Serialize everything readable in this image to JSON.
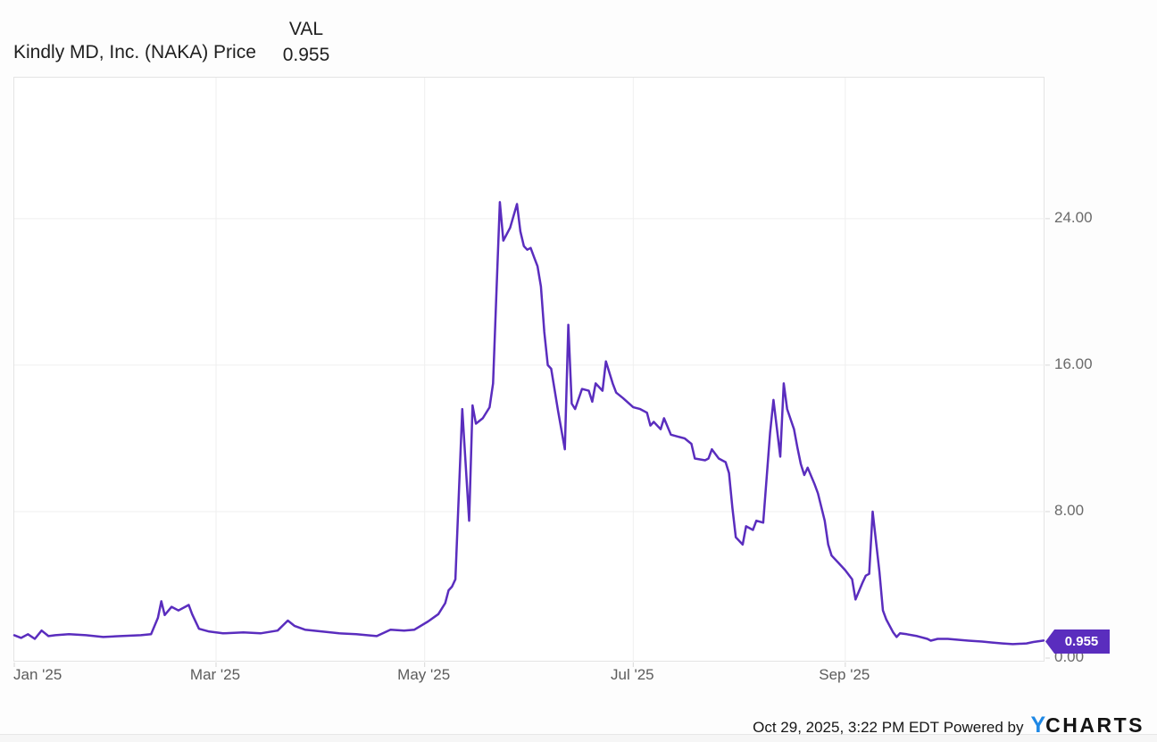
{
  "header": {
    "title": "Kindly MD, Inc. (NAKA) Price",
    "val_label": "VAL",
    "val_value": "0.955"
  },
  "footer": {
    "timestamp": "Oct 29, 2025, 3:22 PM EDT",
    "powered_by": "Powered by",
    "brand_y": "Y",
    "brand_rest": "CHARTS"
  },
  "colors": {
    "line": "#5a2dbe",
    "badge_bg": "#5a2dbe",
    "badge_text": "#ffffff",
    "grid": "#efefef",
    "tick": "#d8d8d8",
    "plot_border": "#e4e4e4",
    "axis_text": "#5c5c5c",
    "brand_blue": "#1e88e5"
  },
  "chart_data": {
    "type": "line",
    "title": "Kindly MD, Inc. (NAKA) Price",
    "series_name": "VAL",
    "last_value": 0.955,
    "end_label": "0.955",
    "x_unit": "days_from_2025-01-01",
    "x_range": [
      0,
      301
    ],
    "ylim": [
      0,
      31.7
    ],
    "grid": true,
    "legend_position": "top",
    "y_ticks": [
      {
        "label": "0.00",
        "value": 0
      },
      {
        "label": "8.00",
        "value": 8
      },
      {
        "label": "16.00",
        "value": 16
      },
      {
        "label": "24.00",
        "value": 24
      }
    ],
    "x_ticks": [
      {
        "label": "Jan '25",
        "day": 0
      },
      {
        "label": "Mar '25",
        "day": 59
      },
      {
        "label": "May '25",
        "day": 120
      },
      {
        "label": "Jul '25",
        "day": 181
      },
      {
        "label": "Sep '25",
        "day": 243
      }
    ],
    "points": [
      [
        0,
        1.25
      ],
      [
        2,
        1.1
      ],
      [
        4,
        1.3
      ],
      [
        6,
        1.05
      ],
      [
        8,
        1.5
      ],
      [
        10,
        1.2
      ],
      [
        12,
        1.25
      ],
      [
        16,
        1.3
      ],
      [
        21,
        1.25
      ],
      [
        26,
        1.15
      ],
      [
        31,
        1.2
      ],
      [
        37,
        1.25
      ],
      [
        40,
        1.3
      ],
      [
        42,
        2.2
      ],
      [
        43,
        3.1
      ],
      [
        44,
        2.35
      ],
      [
        46,
        2.8
      ],
      [
        48,
        2.6
      ],
      [
        51,
        2.9
      ],
      [
        52,
        2.4
      ],
      [
        54,
        1.6
      ],
      [
        57,
        1.45
      ],
      [
        61,
        1.35
      ],
      [
        67,
        1.4
      ],
      [
        72,
        1.35
      ],
      [
        77,
        1.5
      ],
      [
        80,
        2.05
      ],
      [
        82,
        1.75
      ],
      [
        85,
        1.55
      ],
      [
        90,
        1.45
      ],
      [
        95,
        1.35
      ],
      [
        100,
        1.3
      ],
      [
        106,
        1.2
      ],
      [
        110,
        1.55
      ],
      [
        114,
        1.5
      ],
      [
        117,
        1.55
      ],
      [
        121,
        2.0
      ],
      [
        124,
        2.4
      ],
      [
        126,
        3.0
      ],
      [
        127,
        3.7
      ],
      [
        128,
        3.9
      ],
      [
        129,
        4.3
      ],
      [
        131,
        13.6
      ],
      [
        133,
        7.5
      ],
      [
        134,
        13.8
      ],
      [
        135,
        12.8
      ],
      [
        137,
        13.1
      ],
      [
        139,
        13.7
      ],
      [
        140,
        15.0
      ],
      [
        141,
        20.0
      ],
      [
        142,
        24.9
      ],
      [
        143,
        22.8
      ],
      [
        145,
        23.5
      ],
      [
        147,
        24.8
      ],
      [
        148,
        23.3
      ],
      [
        149,
        22.5
      ],
      [
        150,
        22.3
      ],
      [
        151,
        22.4
      ],
      [
        152,
        21.9
      ],
      [
        153,
        21.4
      ],
      [
        154,
        20.3
      ],
      [
        155,
        17.8
      ],
      [
        156,
        16.0
      ],
      [
        157,
        15.8
      ],
      [
        159,
        13.5
      ],
      [
        161,
        11.4
      ],
      [
        162,
        18.2
      ],
      [
        163,
        13.9
      ],
      [
        164,
        13.6
      ],
      [
        166,
        14.7
      ],
      [
        168,
        14.6
      ],
      [
        169,
        14.0
      ],
      [
        170,
        15.0
      ],
      [
        172,
        14.6
      ],
      [
        173,
        16.2
      ],
      [
        175,
        15.0
      ],
      [
        176,
        14.5
      ],
      [
        178,
        14.2
      ],
      [
        181,
        13.7
      ],
      [
        183,
        13.6
      ],
      [
        185,
        13.4
      ],
      [
        186,
        12.7
      ],
      [
        187,
        12.9
      ],
      [
        189,
        12.5
      ],
      [
        190,
        13.1
      ],
      [
        192,
        12.2
      ],
      [
        194,
        12.1
      ],
      [
        196,
        12.0
      ],
      [
        198,
        11.7
      ],
      [
        199,
        10.9
      ],
      [
        202,
        10.8
      ],
      [
        203,
        10.9
      ],
      [
        204,
        11.4
      ],
      [
        206,
        10.9
      ],
      [
        208,
        10.7
      ],
      [
        209,
        10.1
      ],
      [
        210,
        8.2
      ],
      [
        211,
        6.6
      ],
      [
        213,
        6.2
      ],
      [
        214,
        7.2
      ],
      [
        216,
        7.0
      ],
      [
        217,
        7.5
      ],
      [
        219,
        7.4
      ],
      [
        221,
        12.3
      ],
      [
        222,
        14.1
      ],
      [
        224,
        11.0
      ],
      [
        225,
        15.0
      ],
      [
        226,
        13.6
      ],
      [
        228,
        12.5
      ],
      [
        229,
        11.5
      ],
      [
        230,
        10.6
      ],
      [
        231,
        10.0
      ],
      [
        232,
        10.4
      ],
      [
        234,
        9.5
      ],
      [
        235,
        9.0
      ],
      [
        237,
        7.5
      ],
      [
        238,
        6.2
      ],
      [
        239,
        5.6
      ],
      [
        241,
        5.2
      ],
      [
        243,
        4.8
      ],
      [
        245,
        4.3
      ],
      [
        246,
        3.2
      ],
      [
        248,
        4.1
      ],
      [
        249,
        4.5
      ],
      [
        250,
        4.6
      ],
      [
        251,
        8.0
      ],
      [
        253,
        4.7
      ],
      [
        254,
        2.6
      ],
      [
        255,
        2.1
      ],
      [
        257,
        1.4
      ],
      [
        258,
        1.15
      ],
      [
        259,
        1.35
      ],
      [
        261,
        1.3
      ],
      [
        264,
        1.2
      ],
      [
        267,
        1.05
      ],
      [
        268,
        0.95
      ],
      [
        270,
        1.05
      ],
      [
        273,
        1.05
      ],
      [
        276,
        1.0
      ],
      [
        279,
        0.95
      ],
      [
        283,
        0.9
      ],
      [
        286,
        0.85
      ],
      [
        289,
        0.8
      ],
      [
        292,
        0.76
      ],
      [
        296,
        0.8
      ],
      [
        298,
        0.88
      ],
      [
        301,
        0.955
      ]
    ]
  }
}
